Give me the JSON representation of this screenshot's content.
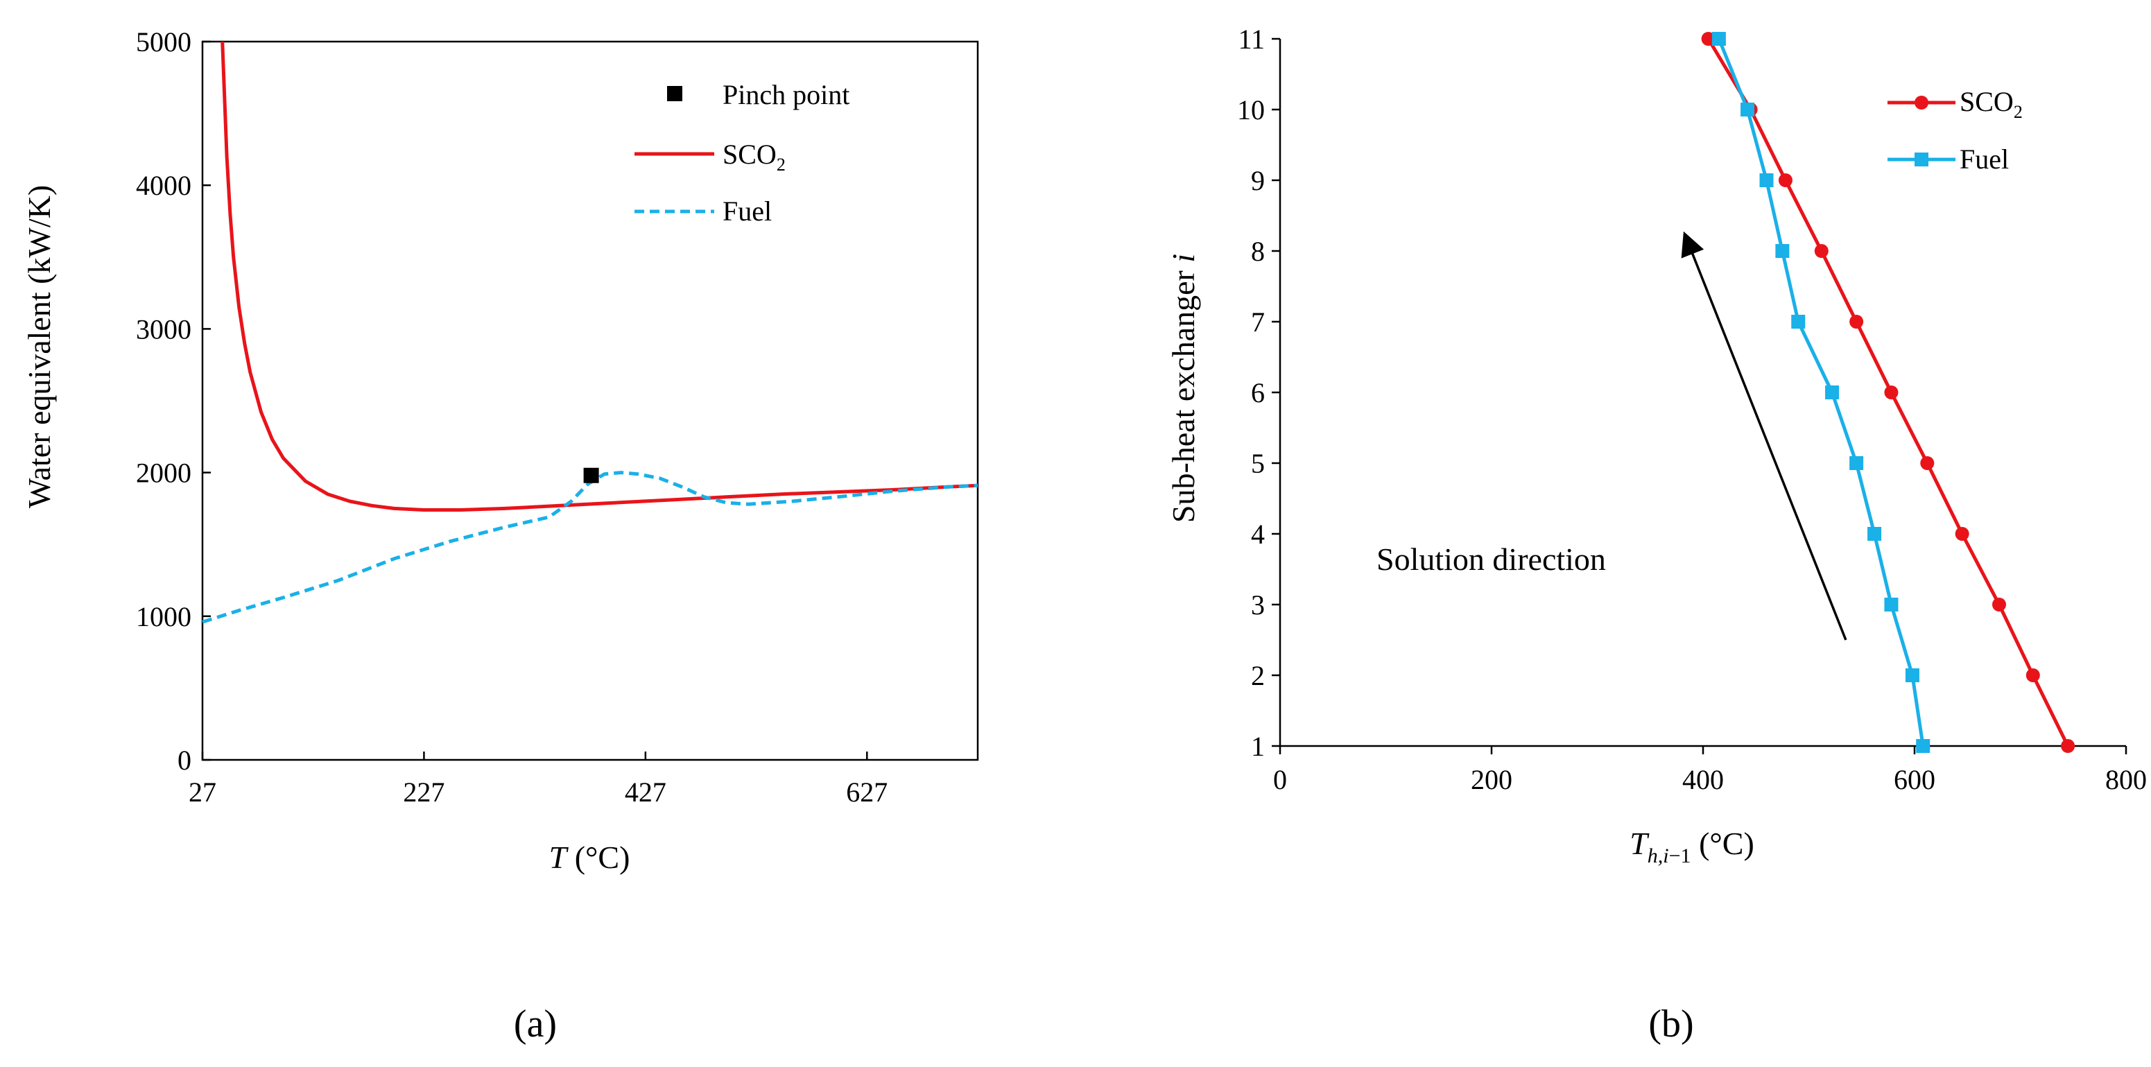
{
  "chart_data": [
    {
      "panel_label": "(a)",
      "type": "line",
      "title": "",
      "xlabel_var": "T",
      "xlabel_unit": "(°C)",
      "ylabel": "Water equivalent  (kW/K)",
      "xlim": [
        27,
        727
      ],
      "ylim": [
        0,
        5000
      ],
      "xticks": [
        27,
        227,
        427,
        627
      ],
      "yticks": [
        0,
        1000,
        2000,
        3000,
        4000,
        5000
      ],
      "series": [
        {
          "name": "SCO",
          "name_sub": "2",
          "color": "#e8141a",
          "style": "solid",
          "x": [
            45,
            47,
            49,
            52,
            55,
            60,
            65,
            70,
            80,
            90,
            100,
            120,
            140,
            160,
            180,
            200,
            227,
            260,
            300,
            350,
            400,
            450,
            500,
            550,
            600,
            650,
            700,
            727
          ],
          "y": [
            5000,
            4600,
            4200,
            3800,
            3500,
            3150,
            2900,
            2700,
            2420,
            2230,
            2100,
            1940,
            1850,
            1800,
            1770,
            1750,
            1740,
            1740,
            1750,
            1770,
            1790,
            1810,
            1830,
            1850,
            1865,
            1880,
            1900,
            1910
          ]
        },
        {
          "name": "Fuel",
          "color": "#1ab0e8",
          "style": "dashed",
          "x": [
            27,
            60,
            100,
            150,
            200,
            250,
            300,
            340,
            360,
            375,
            390,
            405,
            420,
            440,
            460,
            480,
            500,
            520,
            540,
            560,
            600,
            650,
            700,
            727
          ],
          "y": [
            960,
            1040,
            1130,
            1250,
            1400,
            1520,
            1620,
            1690,
            1800,
            1920,
            1990,
            2000,
            1990,
            1960,
            1900,
            1830,
            1790,
            1780,
            1790,
            1800,
            1830,
            1870,
            1900,
            1910
          ]
        }
      ],
      "markers": [
        {
          "name": "Pinch point",
          "x": 378,
          "y": 1980,
          "color": "#000000",
          "shape": "square"
        }
      ]
    },
    {
      "panel_label": "(b)",
      "type": "line",
      "title": "",
      "xlabel_var": "T",
      "xlabel_sub": "h,i",
      "xlabel_sub_tail": "−1",
      "xlabel_unit": "(°C)",
      "ylabel": "Sub-heat exchanger",
      "ylabel_var": "i",
      "xlim": [
        0,
        800
      ],
      "ylim": [
        1,
        11
      ],
      "xticks": [
        0,
        200,
        400,
        600,
        800
      ],
      "yticks": [
        1,
        2,
        3,
        4,
        5,
        6,
        7,
        8,
        9,
        10,
        11
      ],
      "series": [
        {
          "name": "SCO",
          "name_sub": "2",
          "color": "#e8141a",
          "marker": "circle",
          "y": [
            1,
            2,
            3,
            4,
            5,
            6,
            7,
            8,
            9,
            10,
            11
          ],
          "x": [
            745,
            712,
            680,
            645,
            612,
            578,
            545,
            512,
            478,
            445,
            405
          ]
        },
        {
          "name": "Fuel",
          "color": "#1ab0e8",
          "marker": "square",
          "y": [
            1,
            2,
            3,
            4,
            5,
            6,
            7,
            8,
            9,
            10,
            11
          ],
          "x": [
            608,
            598,
            578,
            562,
            545,
            522,
            490,
            475,
            460,
            442,
            415
          ]
        }
      ],
      "annotation": {
        "text": "Solution direction",
        "arrow_from": [
          535,
          2.5
        ],
        "arrow_to": [
          385,
          8.15
        ]
      }
    }
  ]
}
